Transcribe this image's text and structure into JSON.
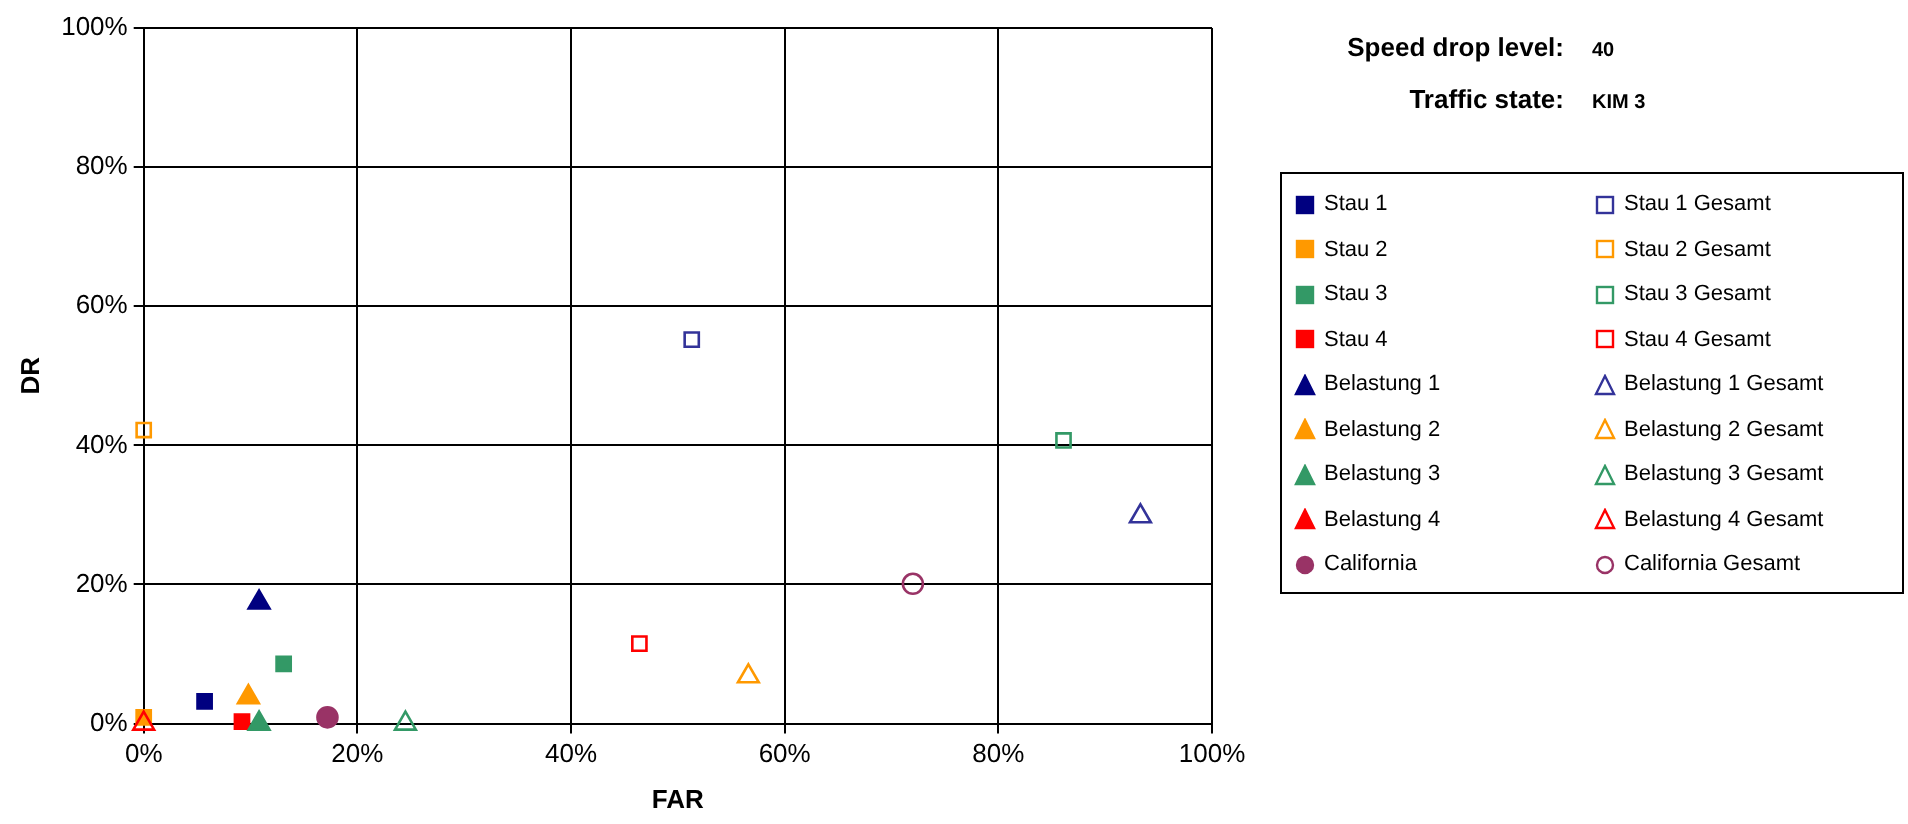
{
  "chart_data": {
    "type": "scatter",
    "xlabel": "FAR",
    "ylabel": "DR",
    "annotations": [
      "Speed drop level:",
      "40",
      "Traffic state:",
      "KIM 3"
    ],
    "xlim": [
      0,
      100
    ],
    "ylim": [
      0,
      100
    ],
    "xticks": [
      {
        "value": 0,
        "label": "0%"
      },
      {
        "value": 20,
        "label": "20%"
      },
      {
        "value": 40,
        "label": "40%"
      },
      {
        "value": 60,
        "label": "60%"
      },
      {
        "value": 80,
        "label": "80%"
      },
      {
        "value": 100,
        "label": "100%"
      }
    ],
    "yticks": [
      {
        "value": 0,
        "label": "0%"
      },
      {
        "value": 20,
        "label": "20%"
      },
      {
        "value": 40,
        "label": "40%"
      },
      {
        "value": 60,
        "label": "60%"
      },
      {
        "value": 80,
        "label": "80%"
      },
      {
        "value": 100,
        "label": "100%"
      }
    ],
    "grid": true,
    "legend": "right",
    "series": [
      {
        "name": "Stau 1",
        "color": "#000080",
        "marker": "square",
        "x": [
          5.7
        ],
        "values": [
          3.2
        ]
      },
      {
        "name": "Stau 1 Gesamt",
        "color": "#333399",
        "marker": "square",
        "x": [
          51.3
        ],
        "values": [
          55.2
        ]
      },
      {
        "name": "Stau 2",
        "color": "#ff9900",
        "marker": "square",
        "x": [
          0
        ],
        "values": [
          0.9
        ]
      },
      {
        "name": "Stau 2 Gesamt",
        "color": "#ff9900",
        "marker": "square",
        "x": [
          0
        ],
        "values": [
          42.2
        ]
      },
      {
        "name": "Stau 3",
        "color": "#339966",
        "marker": "square",
        "x": [
          13.1
        ],
        "values": [
          8.6
        ]
      },
      {
        "name": "Stau 3 Gesamt",
        "color": "#339966",
        "marker": "square",
        "x": [
          86.1
        ],
        "values": [
          40.7
        ]
      },
      {
        "name": "Stau 4",
        "color": "#ff0000",
        "marker": "square",
        "x": [
          9.2
        ],
        "values": [
          0.3
        ]
      },
      {
        "name": "Stau 4 Gesamt",
        "color": "#ff0000",
        "marker": "square",
        "x": [
          46.4
        ],
        "values": [
          11.5
        ]
      },
      {
        "name": "Belastung 1",
        "color": "#000080",
        "marker": "triangle",
        "x": [
          10.8
        ],
        "values": [
          17.4
        ]
      },
      {
        "name": "Belastung 1 Gesamt",
        "color": "#333399",
        "marker": "triangle",
        "x": [
          93.3
        ],
        "values": [
          29.8
        ]
      },
      {
        "name": "Belastung 2",
        "color": "#ff9900",
        "marker": "triangle",
        "x": [
          9.8
        ],
        "values": [
          3.8
        ]
      },
      {
        "name": "Belastung 2 Gesamt",
        "color": "#ff9900",
        "marker": "triangle",
        "x": [
          56.6
        ],
        "values": [
          6.8
        ]
      },
      {
        "name": "Belastung 3",
        "color": "#339966",
        "marker": "triangle",
        "x": [
          10.8
        ],
        "values": [
          0
        ]
      },
      {
        "name": "Belastung 3 Gesamt",
        "color": "#339966",
        "marker": "triangle",
        "x": [
          24.5
        ],
        "values": [
          0
        ]
      },
      {
        "name": "Belastung 4",
        "color": "#ff0000",
        "marker": "triangle",
        "x": [
          null
        ],
        "values": [
          null
        ]
      },
      {
        "name": "Belastung 4 Gesamt",
        "color": "#ff0000",
        "marker": "triangle",
        "x": [
          0
        ],
        "values": [
          0
        ]
      },
      {
        "name": "California",
        "color": "#993366",
        "marker": "circle",
        "x": [
          17.2
        ],
        "values": [
          0.9
        ]
      },
      {
        "name": "California Gesamt",
        "color": "#993366",
        "marker": "circle",
        "x": [
          72
        ],
        "values": [
          20.1
        ]
      }
    ]
  }
}
